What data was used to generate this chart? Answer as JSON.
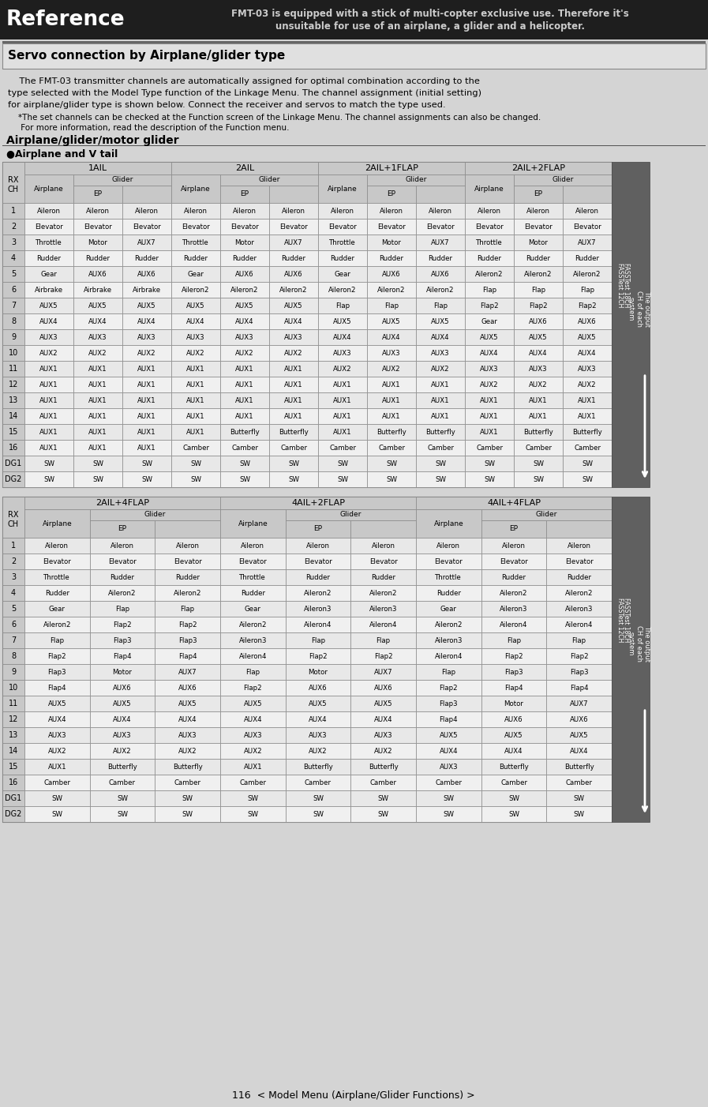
{
  "table1_headers": [
    "1AIL",
    "2AIL",
    "2AIL+1FLAP",
    "2AIL+2FLAP"
  ],
  "table2_headers": [
    "2AIL+4FLAP",
    "4AIL+2FLAP",
    "4AIL+4FLAP"
  ],
  "row_labels": [
    "1",
    "2",
    "3",
    "4",
    "5",
    "6",
    "7",
    "8",
    "9",
    "10",
    "11",
    "12",
    "13",
    "14",
    "15",
    "16",
    "DG1",
    "DG2"
  ],
  "table1_data": [
    [
      "Aileron",
      "Aileron",
      "Aileron",
      "Aileron",
      "Aileron",
      "Aileron",
      "Aileron",
      "Aileron",
      "Aileron",
      "Aileron",
      "Aileron",
      "Aileron"
    ],
    [
      "Elevator",
      "Elevator",
      "Elevator",
      "Elevator",
      "Elevator",
      "Elevator",
      "Elevator",
      "Elevator",
      "Elevator",
      "Elevator",
      "Elevator",
      "Elevator"
    ],
    [
      "Throttle",
      "Motor",
      "AUX7",
      "Throttle",
      "Motor",
      "AUX7",
      "Throttle",
      "Motor",
      "AUX7",
      "Throttle",
      "Motor",
      "AUX7"
    ],
    [
      "Rudder",
      "Rudder",
      "Rudder",
      "Rudder",
      "Rudder",
      "Rudder",
      "Rudder",
      "Rudder",
      "Rudder",
      "Rudder",
      "Rudder",
      "Rudder"
    ],
    [
      "Gear",
      "AUX6",
      "AUX6",
      "Gear",
      "AUX6",
      "AUX6",
      "Gear",
      "AUX6",
      "AUX6",
      "Aileron2",
      "Aileron2",
      "Aileron2"
    ],
    [
      "Airbrake",
      "Airbrake",
      "Airbrake",
      "Aileron2",
      "Aileron2",
      "Aileron2",
      "Aileron2",
      "Aileron2",
      "Aileron2",
      "Flap",
      "Flap",
      "Flap"
    ],
    [
      "AUX5",
      "AUX5",
      "AUX5",
      "AUX5",
      "AUX5",
      "AUX5",
      "Flap",
      "Flap",
      "Flap",
      "Flap2",
      "Flap2",
      "Flap2"
    ],
    [
      "AUX4",
      "AUX4",
      "AUX4",
      "AUX4",
      "AUX4",
      "AUX4",
      "AUX5",
      "AUX5",
      "AUX5",
      "Gear",
      "AUX6",
      "AUX6"
    ],
    [
      "AUX3",
      "AUX3",
      "AUX3",
      "AUX3",
      "AUX3",
      "AUX3",
      "AUX4",
      "AUX4",
      "AUX4",
      "AUX5",
      "AUX5",
      "AUX5"
    ],
    [
      "AUX2",
      "AUX2",
      "AUX2",
      "AUX2",
      "AUX2",
      "AUX2",
      "AUX3",
      "AUX3",
      "AUX3",
      "AUX4",
      "AUX4",
      "AUX4"
    ],
    [
      "AUX1",
      "AUX1",
      "AUX1",
      "AUX1",
      "AUX1",
      "AUX1",
      "AUX2",
      "AUX2",
      "AUX2",
      "AUX3",
      "AUX3",
      "AUX3"
    ],
    [
      "AUX1",
      "AUX1",
      "AUX1",
      "AUX1",
      "AUX1",
      "AUX1",
      "AUX1",
      "AUX1",
      "AUX1",
      "AUX2",
      "AUX2",
      "AUX2"
    ],
    [
      "AUX1",
      "AUX1",
      "AUX1",
      "AUX1",
      "AUX1",
      "AUX1",
      "AUX1",
      "AUX1",
      "AUX1",
      "AUX1",
      "AUX1",
      "AUX1"
    ],
    [
      "AUX1",
      "AUX1",
      "AUX1",
      "AUX1",
      "AUX1",
      "AUX1",
      "AUX1",
      "AUX1",
      "AUX1",
      "AUX1",
      "AUX1",
      "AUX1"
    ],
    [
      "AUX1",
      "AUX1",
      "AUX1",
      "AUX1",
      "Butterfly",
      "Butterfly",
      "AUX1",
      "Butterfly",
      "Butterfly",
      "AUX1",
      "Butterfly",
      "Butterfly"
    ],
    [
      "AUX1",
      "AUX1",
      "AUX1",
      "Camber",
      "Camber",
      "Camber",
      "Camber",
      "Camber",
      "Camber",
      "Camber",
      "Camber",
      "Camber"
    ],
    [
      "SW",
      "SW",
      "SW",
      "SW",
      "SW",
      "SW",
      "SW",
      "SW",
      "SW",
      "SW",
      "SW",
      "SW"
    ],
    [
      "SW",
      "SW",
      "SW",
      "SW",
      "SW",
      "SW",
      "SW",
      "SW",
      "SW",
      "SW",
      "SW",
      "SW"
    ]
  ],
  "table2_data": [
    [
      "Aileron",
      "Aileron",
      "Aileron",
      "Aileron",
      "Aileron",
      "Aileron",
      "Aileron",
      "Aileron",
      "Aileron"
    ],
    [
      "Elevator",
      "Elevator",
      "Elevator",
      "Elevator",
      "Elevator",
      "Elevator",
      "Elevator",
      "Elevator",
      "Elevator"
    ],
    [
      "Throttle",
      "Rudder",
      "Rudder",
      "Throttle",
      "Rudder",
      "Rudder",
      "Throttle",
      "Rudder",
      "Rudder"
    ],
    [
      "Rudder",
      "Aileron2",
      "Aileron2",
      "Rudder",
      "Aileron2",
      "Aileron2",
      "Rudder",
      "Aileron2",
      "Aileron2"
    ],
    [
      "Gear",
      "Flap",
      "Flap",
      "Gear",
      "Aileron3",
      "Aileron3",
      "Gear",
      "Aileron3",
      "Aileron3"
    ],
    [
      "Aileron2",
      "Flap2",
      "Flap2",
      "Aileron2",
      "Aileron4",
      "Aileron4",
      "Aileron2",
      "Aileron4",
      "Aileron4"
    ],
    [
      "Flap",
      "Flap3",
      "Flap3",
      "Aileron3",
      "Flap",
      "Flap",
      "Aileron3",
      "Flap",
      "Flap"
    ],
    [
      "Flap2",
      "Flap4",
      "Flap4",
      "Aileron4",
      "Flap2",
      "Flap2",
      "Aileron4",
      "Flap2",
      "Flap2"
    ],
    [
      "Flap3",
      "Motor",
      "AUX7",
      "Flap",
      "Motor",
      "AUX7",
      "Flap",
      "Flap3",
      "Flap3"
    ],
    [
      "Flap4",
      "AUX6",
      "AUX6",
      "Flap2",
      "AUX6",
      "AUX6",
      "Flap2",
      "Flap4",
      "Flap4"
    ],
    [
      "AUX5",
      "AUX5",
      "AUX5",
      "AUX5",
      "AUX5",
      "AUX5",
      "Flap3",
      "Motor",
      "AUX7"
    ],
    [
      "AUX4",
      "AUX4",
      "AUX4",
      "AUX4",
      "AUX4",
      "AUX4",
      "Flap4",
      "AUX6",
      "AUX6"
    ],
    [
      "AUX3",
      "AUX3",
      "AUX3",
      "AUX3",
      "AUX3",
      "AUX3",
      "AUX5",
      "AUX5",
      "AUX5"
    ],
    [
      "AUX2",
      "AUX2",
      "AUX2",
      "AUX2",
      "AUX2",
      "AUX2",
      "AUX4",
      "AUX4",
      "AUX4"
    ],
    [
      "AUX1",
      "Butterfly",
      "Butterfly",
      "AUX1",
      "Butterfly",
      "Butterfly",
      "AUX3",
      "Butterfly",
      "Butterfly"
    ],
    [
      "Camber",
      "Camber",
      "Camber",
      "Camber",
      "Camber",
      "Camber",
      "Camber",
      "Camber",
      "Camber"
    ],
    [
      "SW",
      "SW",
      "SW",
      "SW",
      "SW",
      "SW",
      "SW",
      "SW",
      "SW"
    ],
    [
      "SW",
      "SW",
      "SW",
      "SW",
      "SW",
      "SW",
      "SW",
      "SW",
      "SW"
    ]
  ],
  "bg_color": "#d4d4d4",
  "header_bg": "#1e1e1e",
  "cell_light": "#e8e8e8",
  "cell_dark": "#c8c8c8",
  "cell_white": "#f0f0f0",
  "side_bg": "#606060",
  "border_color": "#888888",
  "dark_border": "#555555"
}
